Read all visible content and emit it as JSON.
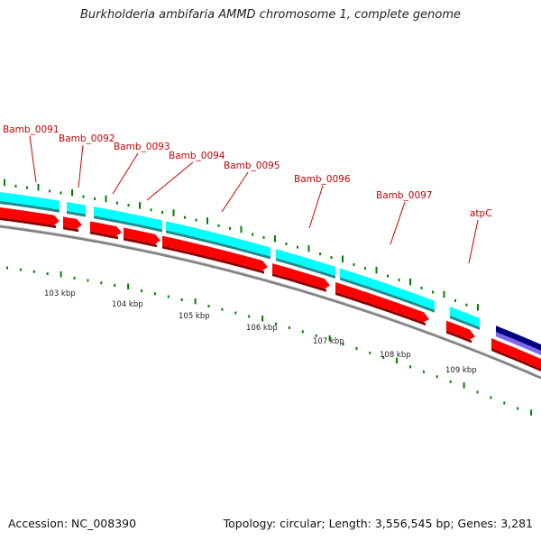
{
  "title": "Burkholderia ambifaria AMMD chromosome 1, complete genome",
  "footer": {
    "accession_label": "Accession: NC_008390",
    "summary_label": "Topology: circular; Length: 3,556,545 bp; Genes: 3,281"
  },
  "colors": {
    "gene_label": "#cc0000",
    "leader_line": "#cc0000",
    "forward_cds": "#ff0000",
    "gene_feature": "#00ffff",
    "rna_feature": "#000080",
    "rna_feature_light": "#7b68ee",
    "tick": "#008000",
    "backbone": "#808080",
    "kbp_label": "#222222"
  },
  "gene_labels": [
    "Bamb_0091",
    "Bamb_0092",
    "Bamb_0093",
    "Bamb_0094",
    "Bamb_0095",
    "Bamb_0096",
    "Bamb_0097",
    "atpC"
  ],
  "kbp_labels": [
    "103 kbp",
    "104 kbp",
    "105 kbp",
    "106 kbp",
    "107 kbp",
    "108 kbp",
    "109 kbp"
  ]
}
